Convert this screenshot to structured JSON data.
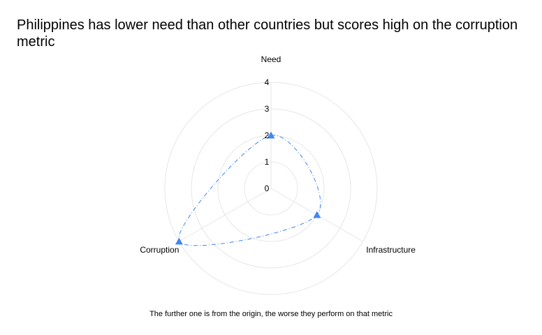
{
  "chart_data": {
    "type": "radar",
    "title": "Philippines has lower need than other countries but scores high on the corruption metric",
    "axes": [
      "Need",
      "Infrastructure",
      "Corruption"
    ],
    "values": [
      2,
      2,
      4
    ],
    "rlim": [
      0,
      4
    ],
    "ticks": [
      "0",
      "1",
      "2",
      "3",
      "4"
    ],
    "grid": true,
    "legend": "none",
    "annotation": "The further one is from the origin, the worse they perform on that metric",
    "colors": {
      "series": "#4285f4",
      "grid": "#e6e6e6"
    }
  }
}
